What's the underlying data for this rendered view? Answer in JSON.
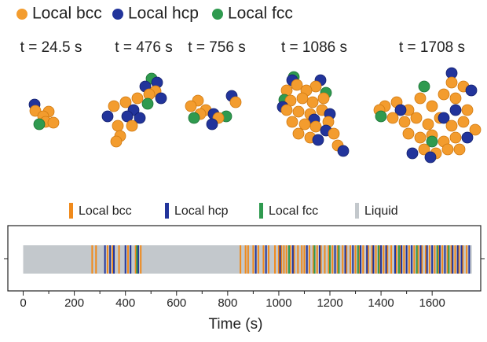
{
  "snapshots": {
    "legend": [
      {
        "name": "Local bcc",
        "color": "#f39c2e"
      },
      {
        "name": "Local hcp",
        "color": "#22349b"
      },
      {
        "name": "Local fcc",
        "color": "#2f9a4f"
      }
    ],
    "times": [
      "t = 24.5 s",
      "t = 476 s",
      "t = 756 s",
      "t = 1086 s",
      "t = 1708 s"
    ]
  },
  "chart_data": {
    "type": "event",
    "xlabel": "Time (s)",
    "xlim": [
      -60,
      1790
    ],
    "xticks": [
      0,
      200,
      400,
      600,
      800,
      1000,
      1200,
      1400,
      1600
    ],
    "series": [
      {
        "name": "Local bcc",
        "color": "#f08a1c",
        "x": [
          270,
          285,
          330,
          350,
          375,
          410,
          440,
          460,
          850,
          870,
          880,
          900,
          920,
          940,
          960,
          985,
          1000,
          1010,
          1020,
          1030,
          1045,
          1060,
          1075,
          1090,
          1100,
          1120,
          1135,
          1150,
          1165,
          1180,
          1195,
          1210,
          1230,
          1250,
          1265,
          1280,
          1300,
          1315,
          1330,
          1350,
          1365,
          1380,
          1395,
          1410,
          1425,
          1440,
          1460,
          1475,
          1490,
          1510,
          1530,
          1545,
          1560,
          1575,
          1590,
          1610,
          1625,
          1640,
          1660,
          1675,
          1690,
          1705,
          1720,
          1735
        ]
      },
      {
        "name": "Local hcp",
        "color": "#22349b",
        "x": [
          320,
          340,
          355,
          400,
          420,
          450,
          910,
          950,
          1005,
          1055,
          1110,
          1160,
          1220,
          1260,
          1290,
          1320,
          1345,
          1370,
          1400,
          1420,
          1455,
          1480,
          1500,
          1520,
          1555,
          1580,
          1600,
          1630,
          1650,
          1680,
          1700,
          1715,
          1745
        ]
      },
      {
        "name": "Local fcc",
        "color": "#2f9a4f",
        "x": [
          445,
          1040,
          1140,
          1200,
          1235,
          1310,
          1390,
          1470,
          1540,
          1620,
          1665
        ]
      },
      {
        "name": "Liquid",
        "color": "#c3c8cc",
        "x": [
          0,
          1755
        ]
      }
    ]
  }
}
